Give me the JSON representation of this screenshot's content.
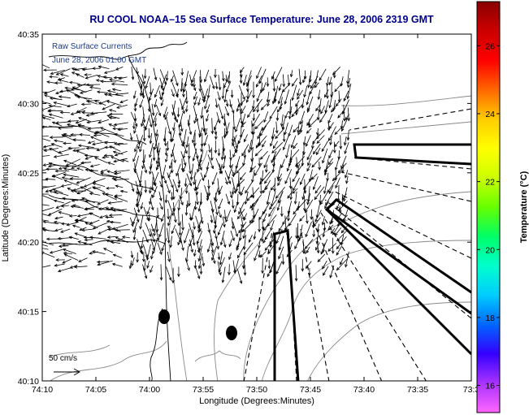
{
  "title": "RU COOL  NOAA–15  Sea Surface Temperature:  June 28, 2006 2319 GMT",
  "annotation": {
    "line1": "Raw Surface Currents",
    "line2": "June 28, 2006 01:00 GMT"
  },
  "axes": {
    "xlabel": "Longitude (Degrees:Minutes)",
    "ylabel": "Latitude (Degrees:Minutes)",
    "xticks": [
      "74:10",
      "74:05",
      "74:00",
      "73:55",
      "73:50",
      "73:45",
      "73:40",
      "73:35",
      "73:3"
    ],
    "yticks": [
      "40:35",
      "40:30",
      "40:25",
      "40:20",
      "40:15",
      "40:10"
    ]
  },
  "scale_vector": {
    "label": "50 cm/s"
  },
  "colorbar": {
    "label": "Temperature (°C)",
    "ticks": [
      "26",
      "24",
      "22",
      "20",
      "18",
      "16"
    ],
    "range": [
      15.2,
      27.3
    ],
    "colors": [
      "#ff66ff",
      "#aa33ff",
      "#3300ff",
      "#0066ff",
      "#00ccff",
      "#00ffcc",
      "#00ff66",
      "#66ff00",
      "#ccff00",
      "#ffff00",
      "#ffcc00",
      "#ff6600",
      "#ff0000",
      "#cc0000",
      "#880000"
    ]
  },
  "colors": {
    "title": "#00008b",
    "annotation": "#1a3a8a",
    "land_outline": "#000000",
    "bathymetry": "#888888",
    "vectors": "#000000"
  }
}
